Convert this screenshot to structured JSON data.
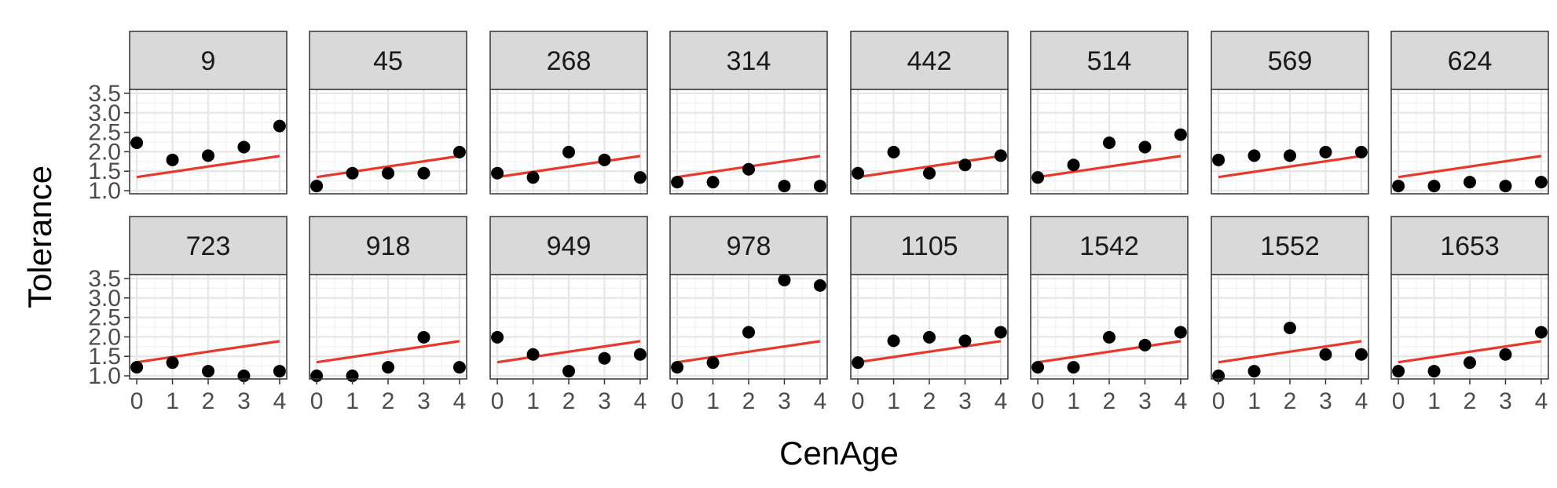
{
  "chart_data": {
    "type": "scatter",
    "xlabel": "CenAge",
    "ylabel": "Tolerance",
    "x_ticks": [
      0,
      1,
      2,
      3,
      4
    ],
    "y_ticks": [
      1.0,
      1.5,
      2.0,
      2.5,
      3.0,
      3.5
    ],
    "y_tick_labels": [
      "1.0",
      "1.5",
      "2.0",
      "2.5",
      "3.0",
      "3.5"
    ],
    "xlim": [
      -0.2,
      4.2
    ],
    "ylim": [
      0.92,
      3.6
    ],
    "grid": true,
    "fit_line": {
      "color": "#e8382c",
      "y_at_x0": 1.35,
      "y_at_x4": 1.89
    },
    "point_color": "#000000",
    "x": [
      0,
      1,
      2,
      3,
      4
    ],
    "panels": [
      {
        "label": "9",
        "y": [
          2.23,
          1.79,
          1.9,
          2.12,
          2.66
        ]
      },
      {
        "label": "45",
        "y": [
          1.12,
          1.45,
          1.45,
          1.45,
          1.99
        ]
      },
      {
        "label": "268",
        "y": [
          1.45,
          1.34,
          1.99,
          1.79,
          1.34
        ]
      },
      {
        "label": "314",
        "y": [
          1.22,
          1.22,
          1.55,
          1.12,
          1.12
        ]
      },
      {
        "label": "442",
        "y": [
          1.45,
          1.99,
          1.45,
          1.66,
          1.9
        ]
      },
      {
        "label": "514",
        "y": [
          1.34,
          1.66,
          2.23,
          2.12,
          2.44
        ]
      },
      {
        "label": "569",
        "y": [
          1.79,
          1.9,
          1.9,
          1.99,
          1.99
        ]
      },
      {
        "label": "624",
        "y": [
          1.12,
          1.12,
          1.22,
          1.12,
          1.22
        ]
      },
      {
        "label": "723",
        "y": [
          1.22,
          1.34,
          1.12,
          1.0,
          1.12
        ]
      },
      {
        "label": "918",
        "y": [
          1.0,
          1.0,
          1.22,
          1.99,
          1.22
        ]
      },
      {
        "label": "949",
        "y": [
          1.99,
          1.55,
          1.12,
          1.45,
          1.55
        ]
      },
      {
        "label": "978",
        "y": [
          1.22,
          1.34,
          2.12,
          3.46,
          3.32
        ]
      },
      {
        "label": "1105",
        "y": [
          1.34,
          1.9,
          1.99,
          1.9,
          2.12
        ]
      },
      {
        "label": "1542",
        "y": [
          1.22,
          1.22,
          1.99,
          1.79,
          2.12
        ]
      },
      {
        "label": "1552",
        "y": [
          1.0,
          1.12,
          2.23,
          1.55,
          1.55
        ]
      },
      {
        "label": "1653",
        "y": [
          1.12,
          1.12,
          1.34,
          1.55,
          2.12
        ]
      }
    ]
  }
}
